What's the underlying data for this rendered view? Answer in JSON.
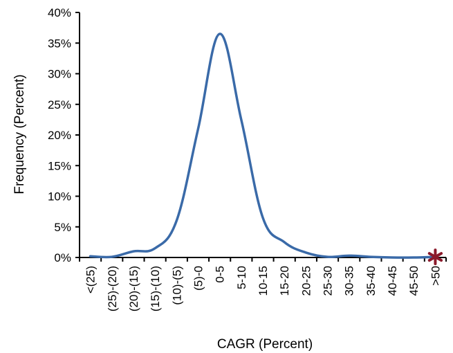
{
  "chart_data": {
    "type": "line",
    "title": "",
    "xlabel": "CAGR (Percent)",
    "ylabel": "Frequency (Percent)",
    "ylim": [
      0,
      40
    ],
    "ytick_values": [
      0,
      5,
      10,
      15,
      20,
      25,
      30,
      35,
      40
    ],
    "ytick_labels": [
      "0%",
      "5%",
      "10%",
      "15%",
      "20%",
      "25%",
      "30%",
      "35%",
      "40%"
    ],
    "categories": [
      "<(25)",
      "(25)-(20)",
      "(20)-(15)",
      "(15)-(10)",
      "(10)-(5)",
      "(5)-0",
      "0-5",
      "5-10",
      "10-15",
      "15-20",
      "20-25",
      "25-30",
      "30-35",
      "35-40",
      "40-45",
      "45-50",
      ">50"
    ],
    "series": [
      {
        "values": [
          0.2,
          0.1,
          1.0,
          1.5,
          6.0,
          21.0,
          36.5,
          22.5,
          6.5,
          2.5,
          0.8,
          0.1,
          0.3,
          0.1,
          0.0,
          0.0,
          0.1
        ],
        "color": "#3a6aa8"
      }
    ],
    "marker": {
      "category": ">50",
      "value": 0.1,
      "symbol": "asterisk",
      "color": "#8b1a2b"
    },
    "grid": false,
    "legend": "none"
  }
}
